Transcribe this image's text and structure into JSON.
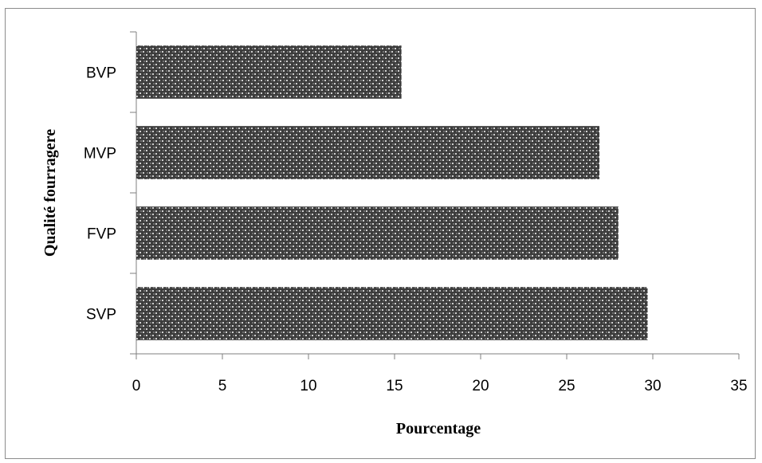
{
  "chart_data": {
    "type": "bar",
    "orientation": "horizontal",
    "categories": [
      "SVP",
      "FVP",
      "MVP",
      "BVP"
    ],
    "values": [
      29.7,
      28.0,
      26.9,
      15.4
    ],
    "title": "",
    "xlabel": "Pourcentage",
    "ylabel": "Qualité fourragere",
    "xlim": [
      0,
      35
    ],
    "xticks": [
      0,
      5,
      10,
      15,
      20,
      25,
      30,
      35
    ],
    "grid": false,
    "legend": "none"
  },
  "colors": {
    "bar_fill": "#3c3c3c",
    "bar_pattern_dot": "#ffffff",
    "axis": "#7f7f7f"
  }
}
